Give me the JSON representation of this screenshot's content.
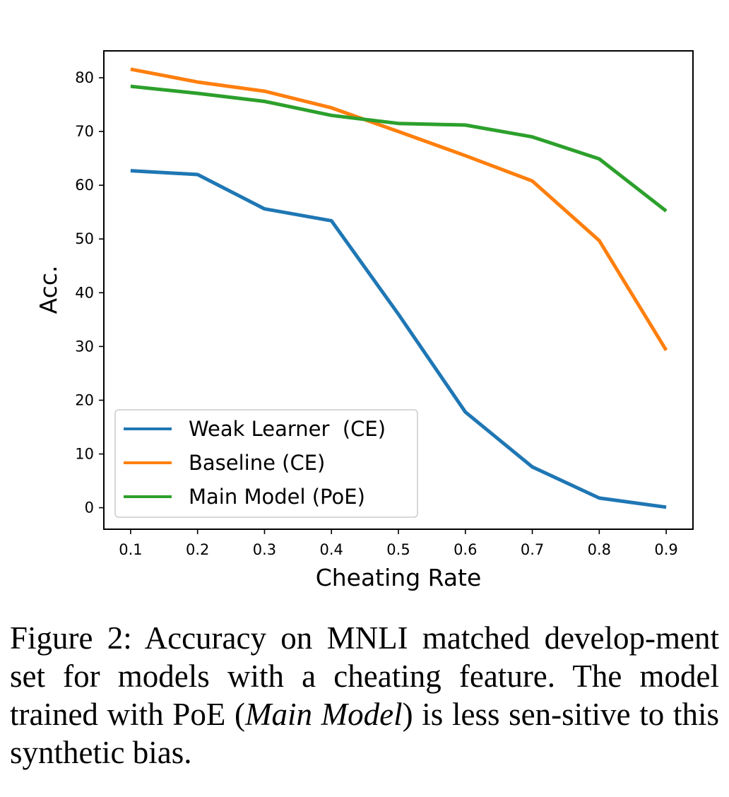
{
  "chart_data": {
    "type": "line",
    "xlabel": "Cheating Rate",
    "ylabel": "Acc.",
    "x": [
      0.1,
      0.2,
      0.3,
      0.4,
      0.5,
      0.6,
      0.7,
      0.8,
      0.9
    ],
    "xticks": [
      "0.1",
      "0.2",
      "0.3",
      "0.4",
      "0.5",
      "0.6",
      "0.7",
      "0.8",
      "0.9"
    ],
    "yticks": [
      "0",
      "10",
      "20",
      "30",
      "40",
      "50",
      "60",
      "70",
      "80"
    ],
    "xlim": [
      0.06,
      0.94
    ],
    "ylim": [
      -4,
      85
    ],
    "grid": false,
    "legend_position": "lower-left",
    "series": [
      {
        "name": "Weak Learner  (CE)",
        "color": "#1f77b4",
        "values": [
          62.7,
          62.0,
          55.6,
          53.4,
          36.0,
          17.8,
          7.6,
          1.8,
          0.1
        ]
      },
      {
        "name": "Baseline (CE)",
        "color": "#ff7f0e",
        "values": [
          81.6,
          79.2,
          77.5,
          74.4,
          70.0,
          65.5,
          60.8,
          49.7,
          29.3
        ]
      },
      {
        "name": "Main Model (PoE)",
        "color": "#2ca02c",
        "values": [
          78.4,
          77.1,
          75.6,
          73.0,
          71.5,
          71.2,
          69.0,
          64.9,
          55.2
        ]
      }
    ]
  },
  "caption": {
    "prefix": "Figure 2:  Accuracy on MNLI matched develop-ment set for models with a cheating feature. The model trained with PoE (",
    "emphasis": "Main Model",
    "suffix": ") is less sen-sitive to this synthetic bias."
  }
}
